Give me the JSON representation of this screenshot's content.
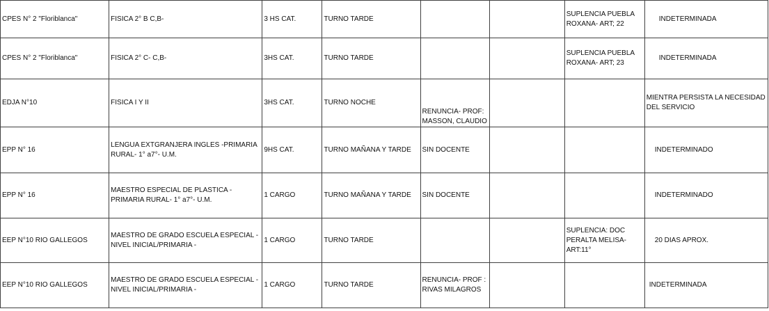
{
  "rows": [
    {
      "escuela": "CPES N° 2 \"Floriblanca\"",
      "cargo": "FISICA 2° B C,B-",
      "horas": "3 HS CAT.",
      "turno": "TURNO TARDE",
      "motivo": "",
      "col6": "",
      "suplencia": "SUPLENCIA PUEBLA ROXANA- ART; 22",
      "duracion": "INDETERMINADA"
    },
    {
      "escuela": "CPES N° 2 \"Floriblanca\"",
      "cargo": "FISICA 2° C- C,B-",
      "horas": "3HS CAT.",
      "turno": "TURNO TARDE",
      "motivo": "",
      "col6": "",
      "suplencia": "SUPLENCIA PUEBLA ROXANA- ART; 23",
      "duracion": "INDETERMINADA"
    },
    {
      "escuela": "EDJA N°10",
      "cargo": "FISICA I Y II",
      "horas": "3HS CAT.",
      "turno": "TURNO NOCHE",
      "motivo": "RENUNCIA- PROF: MASSON, CLAUDIO",
      "col6": "",
      "suplencia": "",
      "duracion": "MIENTRA PERSISTA LA NECESIDAD DEL SERVICIO"
    },
    {
      "escuela": "EPP N° 16",
      "cargo": "LENGUA EXTGRANJERA INGLES -PRIMARIA RURAL- 1° a7°- U.M.",
      "horas": "9HS CAT.",
      "turno": "TURNO MAÑANA Y TARDE",
      "motivo": "SIN DOCENTE",
      "col6": "",
      "suplencia": "",
      "duracion": "INDETERMINADO"
    },
    {
      "escuela": "EPP N° 16",
      "cargo": "MAESTRO ESPECIAL DE PLASTICA -PRIMARIA RURAL- 1° a7°- U.M.",
      "horas": "1 CARGO",
      "turno": "TURNO MAÑANA Y TARDE",
      "motivo": "SIN DOCENTE",
      "col6": "",
      "suplencia": "",
      "duracion": "INDETERMINADO"
    },
    {
      "escuela": "EEP N°10 RIO GALLEGOS",
      "cargo": "MAESTRO DE GRADO ESCUELA ESPECIAL -NIVEL INICIAL/PRIMARIA -",
      "horas": "1 CARGO",
      "turno": "TURNO TARDE",
      "motivo": "",
      "col6": "",
      "suplencia": "SUPLENCIA: DOC PERALTA MELISA- ART:11°",
      "duracion": "20 DIAS APROX."
    },
    {
      "escuela": "EEP N°10 RIO GALLEGOS",
      "cargo": "MAESTRO DE GRADO ESCUELA ESPECIAL -NIVEL INICIAL/PRIMARIA -",
      "horas": "1 CARGO",
      "turno": "TURNO TARDE",
      "motivo": "RENUNCIA- PROF : RIVAS MILAGROS",
      "col6": "",
      "suplencia": "",
      "duracion": "INDETERMINADA"
    }
  ]
}
